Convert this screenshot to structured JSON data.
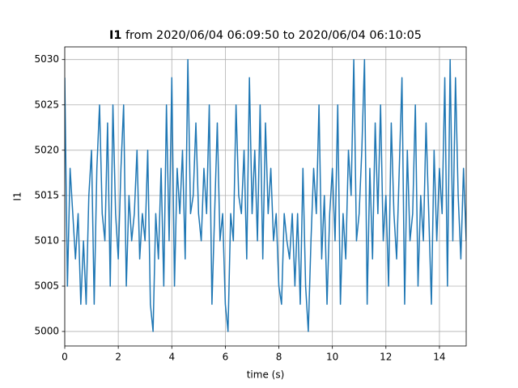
{
  "chart_data": {
    "type": "line",
    "title_parts": [
      "I1",
      " from 2020/06/04 06:09:50 to 2020/06/04 06:10:05"
    ],
    "xlabel": "time (s)",
    "ylabel": "I1",
    "xlim": [
      0,
      15
    ],
    "ylim": [
      4998.4,
      5031.4
    ],
    "xticks": [
      0,
      2,
      4,
      6,
      8,
      10,
      12,
      14
    ],
    "yticks": [
      5000,
      5005,
      5010,
      5015,
      5020,
      5025,
      5030
    ],
    "grid": true,
    "x": [
      0,
      0.1,
      0.2,
      0.3,
      0.4,
      0.5,
      0.6,
      0.7,
      0.8,
      0.9,
      1,
      1.1,
      1.2,
      1.3,
      1.4,
      1.5,
      1.6,
      1.7,
      1.8,
      1.9,
      2,
      2.1,
      2.2,
      2.3,
      2.4,
      2.5,
      2.6,
      2.7,
      2.8,
      2.9,
      3,
      3.1,
      3.2,
      3.3,
      3.4,
      3.5,
      3.6,
      3.7,
      3.8,
      3.9,
      4,
      4.1,
      4.2,
      4.3,
      4.4,
      4.5,
      4.6,
      4.7,
      4.8,
      4.9,
      5,
      5.1,
      5.2,
      5.3,
      5.4,
      5.5,
      5.6,
      5.7,
      5.8,
      5.9,
      6,
      6.1,
      6.2,
      6.3,
      6.4,
      6.5,
      6.6,
      6.7,
      6.8,
      6.9,
      7,
      7.1,
      7.2,
      7.3,
      7.4,
      7.5,
      7.6,
      7.7,
      7.8,
      7.9,
      8,
      8.1,
      8.2,
      8.3,
      8.4,
      8.5,
      8.6,
      8.7,
      8.8,
      8.9,
      9,
      9.1,
      9.2,
      9.3,
      9.4,
      9.5,
      9.6,
      9.7,
      9.8,
      9.9,
      10,
      10.1,
      10.2,
      10.3,
      10.4,
      10.5,
      10.6,
      10.7,
      10.8,
      10.9,
      11,
      11.1,
      11.2,
      11.3,
      11.4,
      11.5,
      11.6,
      11.7,
      11.8,
      11.9,
      12,
      12.1,
      12.2,
      12.3,
      12.4,
      12.5,
      12.6,
      12.7,
      12.8,
      12.9,
      13,
      13.1,
      13.2,
      13.3,
      13.4,
      13.5,
      13.6,
      13.7,
      13.8,
      13.9,
      14,
      14.1,
      14.2,
      14.3,
      14.4,
      14.5,
      14.6,
      14.7,
      14.8,
      14.9,
      15
    ],
    "series": [
      {
        "name": "I1",
        "color": "#1f77b4",
        "values": [
          5028,
          5005,
          5018,
          5013,
          5008,
          5013,
          5003,
          5010,
          5003,
          5015,
          5020,
          5003,
          5018,
          5025,
          5013,
          5010,
          5023,
          5005,
          5025,
          5013,
          5008,
          5018,
          5025,
          5005,
          5015,
          5010,
          5013,
          5020,
          5008,
          5013,
          5010,
          5020,
          5003,
          5000,
          5013,
          5008,
          5018,
          5005,
          5025,
          5010,
          5028,
          5005,
          5018,
          5013,
          5020,
          5008,
          5030,
          5013,
          5015,
          5023,
          5013,
          5010,
          5018,
          5013,
          5025,
          5003,
          5013,
          5023,
          5010,
          5013,
          5003,
          5000,
          5013,
          5010,
          5025,
          5015,
          5013,
          5020,
          5008,
          5028,
          5013,
          5020,
          5010,
          5025,
          5008,
          5023,
          5013,
          5018,
          5010,
          5013,
          5005,
          5003,
          5013,
          5010,
          5008,
          5013,
          5005,
          5013,
          5003,
          5018,
          5005,
          5000,
          5010,
          5018,
          5013,
          5025,
          5008,
          5015,
          5003,
          5013,
          5018,
          5010,
          5025,
          5003,
          5013,
          5008,
          5020,
          5015,
          5030,
          5010,
          5013,
          5020,
          5030,
          5003,
          5018,
          5008,
          5023,
          5013,
          5025,
          5010,
          5015,
          5005,
          5023,
          5013,
          5008,
          5018,
          5028,
          5003,
          5020,
          5010,
          5013,
          5025,
          5005,
          5015,
          5010,
          5023,
          5013,
          5003,
          5020,
          5010,
          5018,
          5013,
          5028,
          5005,
          5030,
          5010,
          5028,
          5015,
          5008,
          5018,
          5010
        ]
      }
    ]
  }
}
